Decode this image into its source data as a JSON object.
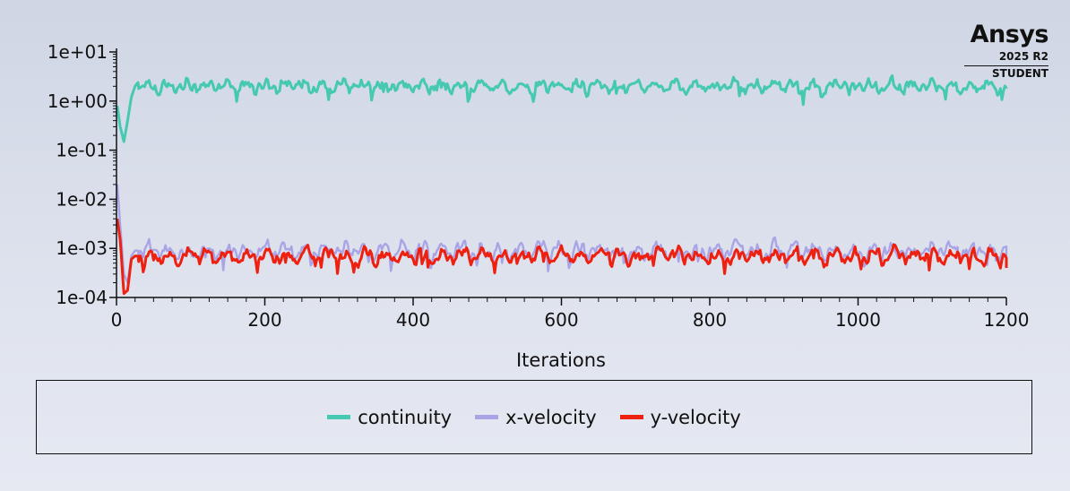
{
  "logo": {
    "brand": "Ansys",
    "version": "2025 R2",
    "edition": "STUDENT"
  },
  "chart_data": {
    "type": "line",
    "title": "",
    "xlabel": "Iterations",
    "ylabel": "",
    "xlim": [
      0,
      1200
    ],
    "ylim": [
      0.0001,
      10
    ],
    "yscale": "log",
    "x_ticks": [
      0,
      200,
      400,
      600,
      800,
      1000,
      1200
    ],
    "x_tick_labels": [
      "0",
      "200",
      "400",
      "600",
      "800",
      "1000",
      "1200"
    ],
    "y_ticks": [
      10,
      1,
      0.1,
      0.01,
      0.001,
      0.0001
    ],
    "y_tick_labels": [
      "1e+01",
      "1e+00",
      "1e-01",
      "1e-02",
      "1e-03",
      "1e-04"
    ],
    "grid": false,
    "legend_position": "bottom",
    "series": [
      {
        "name": "continuity",
        "color": "#45c9b0",
        "key_points": [
          [
            1,
            0.8
          ],
          [
            5,
            0.3
          ],
          [
            10,
            0.15
          ],
          [
            15,
            0.4
          ],
          [
            20,
            1.2
          ],
          [
            25,
            2.0
          ],
          [
            30,
            2.5
          ]
        ],
        "steady_mean": 2.0,
        "steady_log_amplitude": 0.18,
        "final_value": 1.8
      },
      {
        "name": "x-velocity",
        "color": "#a9a4e6",
        "key_points": [
          [
            1,
            0.02
          ],
          [
            5,
            0.003
          ],
          [
            10,
            0.0003
          ],
          [
            15,
            0.0002
          ],
          [
            20,
            0.0007
          ],
          [
            25,
            0.0009
          ],
          [
            30,
            0.0009
          ]
        ],
        "steady_mean": 0.0009,
        "steady_log_amplitude": 0.22,
        "final_value": 0.0006
      },
      {
        "name": "y-velocity",
        "color": "#ee2010",
        "key_points": [
          [
            1,
            0.004
          ],
          [
            5,
            0.0015
          ],
          [
            10,
            0.00012
          ],
          [
            15,
            0.00014
          ],
          [
            20,
            0.0006
          ],
          [
            25,
            0.0007
          ],
          [
            30,
            0.0007
          ]
        ],
        "steady_mean": 0.0007,
        "steady_log_amplitude": 0.2,
        "final_value": 0.0004
      }
    ]
  }
}
